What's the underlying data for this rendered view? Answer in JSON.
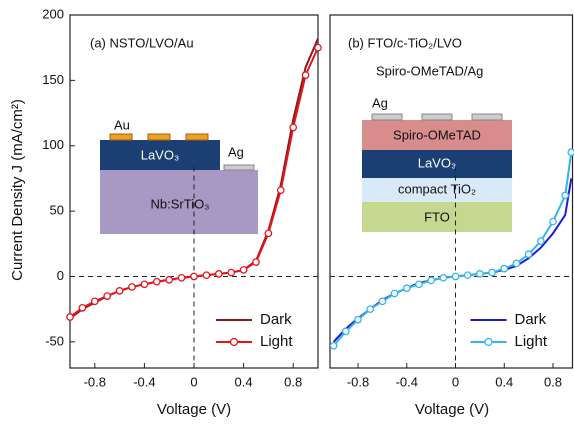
{
  "chart_data": [
    {
      "type": "line",
      "title": "(a) NSTO/LVO/Au",
      "x_label": "Voltage  (V)",
      "y_label": "Current Density J  (mA/cm²)",
      "x": [
        -1.0,
        -0.9,
        -0.8,
        -0.7,
        -0.6,
        -0.5,
        -0.4,
        -0.3,
        -0.2,
        -0.1,
        0,
        0.1,
        0.2,
        0.3,
        0.4,
        0.5,
        0.6,
        0.7,
        0.8,
        0.9,
        1.0
      ],
      "series": [
        {
          "name": "Dark",
          "color": "#8b1a1a",
          "values": [
            -32,
            -25,
            -20,
            -15,
            -11,
            -8,
            -6,
            -4,
            -2.5,
            -1,
            0,
            1,
            2,
            3,
            5,
            12,
            35,
            70,
            120,
            160,
            182
          ]
        },
        {
          "name": "Light",
          "color": "#e8141c",
          "marker": "circle",
          "values": [
            -31,
            -24,
            -19,
            -15,
            -11,
            -8,
            -6,
            -4,
            -2.5,
            -1,
            0,
            1,
            2,
            3,
            5,
            11,
            33,
            66,
            114,
            154,
            175
          ]
        }
      ],
      "xlim": [
        -1.0,
        1.0
      ],
      "ylim": [
        -70,
        200
      ],
      "xticks": [
        -0.8,
        -0.4,
        0.0,
        0.4,
        0.8
      ],
      "yticks": [
        -50,
        0,
        50,
        100,
        150,
        200
      ],
      "legend": "lower right",
      "inset_labels": [
        "Au",
        "Ag",
        "LaVO₃",
        "Nb:SrTiO₃"
      ]
    },
    {
      "type": "line",
      "title": "(b) FTO/c-TiO₂/LVO",
      "subtitle": "Spiro-OMeTAD/Ag",
      "x_label": "Voltage  (V)",
      "x": [
        -1.0,
        -0.9,
        -0.8,
        -0.7,
        -0.6,
        -0.5,
        -0.4,
        -0.3,
        -0.2,
        -0.1,
        0,
        0.1,
        0.2,
        0.3,
        0.4,
        0.5,
        0.6,
        0.7,
        0.8,
        0.9,
        0.95
      ],
      "series": [
        {
          "name": "Dark",
          "color": "#1a1adb",
          "values": [
            -50,
            -40,
            -32,
            -25,
            -18,
            -13,
            -9,
            -5,
            -3,
            -1,
            0,
            1,
            2,
            3,
            5,
            8,
            14,
            22,
            33,
            47,
            75
          ]
        },
        {
          "name": "Light",
          "color": "#33b5e8",
          "marker": "circle",
          "values": [
            -53,
            -42,
            -33,
            -25,
            -19,
            -13,
            -9,
            -6,
            -3,
            -1,
            0,
            1,
            2,
            3,
            6,
            10,
            17,
            27,
            42,
            62,
            95
          ]
        }
      ],
      "xlim": [
        -1.03,
        0.96
      ],
      "ylim": [
        -70,
        200
      ],
      "xticks": [
        -0.8,
        -0.4,
        0.0,
        0.4,
        0.8
      ],
      "legend": "lower right",
      "inset_labels": [
        "Ag",
        "Spiro-OMeTAD",
        "LaVO₃",
        "compact TiO₂",
        "FTO"
      ]
    }
  ]
}
